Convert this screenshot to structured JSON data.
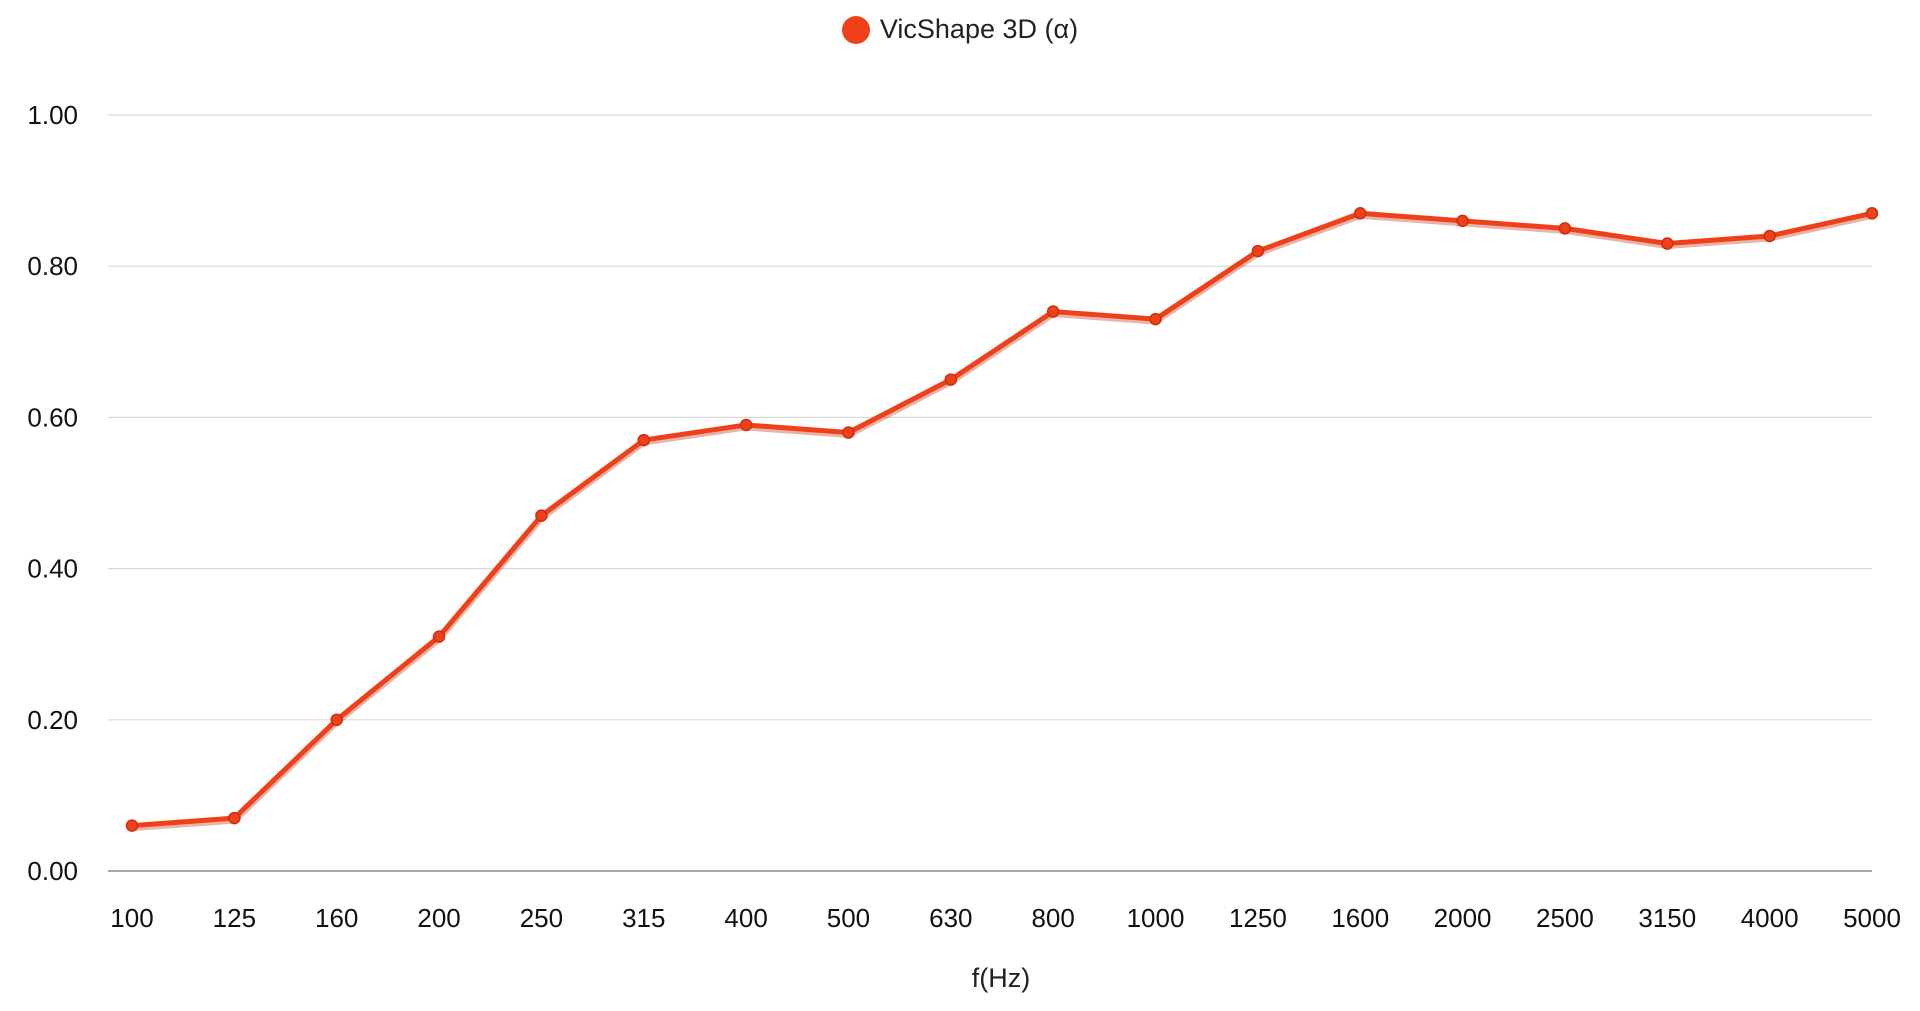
{
  "chart_data": {
    "type": "line",
    "title": "",
    "xlabel": "f(Hz)",
    "ylabel": "",
    "ylim": [
      0,
      1
    ],
    "yticks": [
      "0.00",
      "0.20",
      "0.40",
      "0.60",
      "0.80",
      "1.00"
    ],
    "ytick_values": [
      0,
      0.2,
      0.4,
      0.6,
      0.8,
      1.0
    ],
    "categories": [
      "100",
      "125",
      "160",
      "200",
      "250",
      "315",
      "400",
      "500",
      "630",
      "800",
      "1000",
      "1250",
      "1600",
      "2000",
      "2500",
      "3150",
      "4000",
      "5000"
    ],
    "series": [
      {
        "name": "VicShape 3D (α)",
        "color": "#f0401a",
        "values": [
          0.06,
          0.07,
          0.2,
          0.31,
          0.47,
          0.57,
          0.59,
          0.58,
          0.65,
          0.74,
          0.73,
          0.82,
          0.87,
          0.86,
          0.85,
          0.83,
          0.84,
          0.87
        ]
      }
    ],
    "grid": true,
    "legend_position": "top-center",
    "gridline_color": "#d9d9d9",
    "axis_color": "#888888"
  }
}
